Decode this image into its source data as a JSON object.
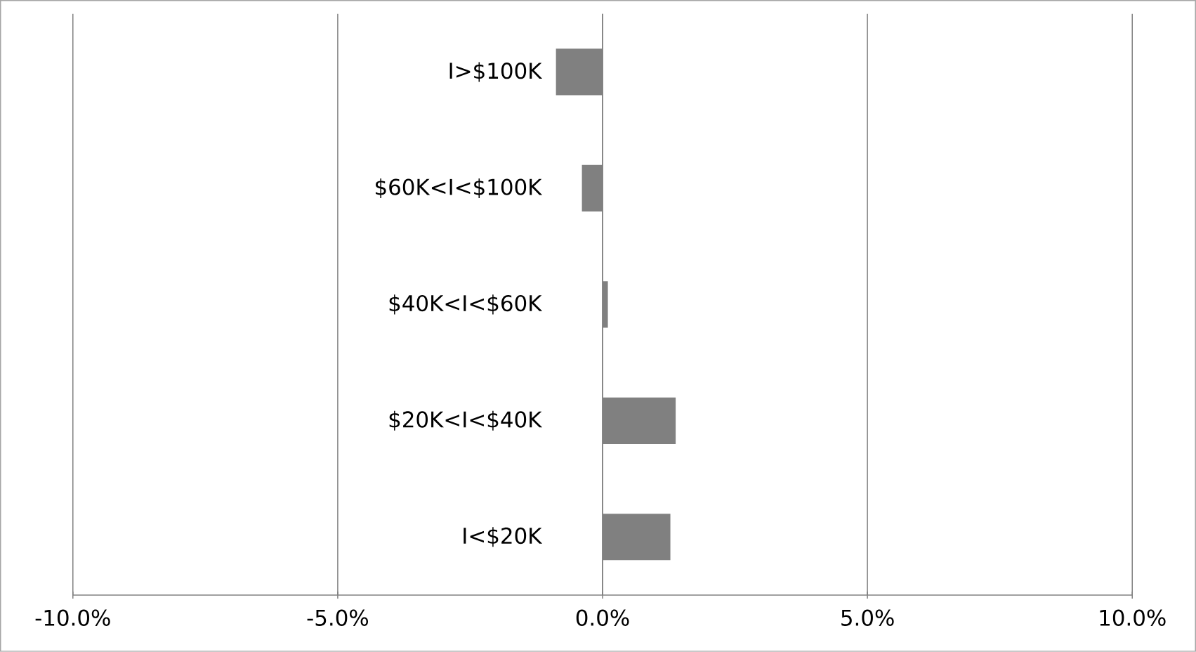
{
  "chart_data": {
    "type": "bar",
    "orientation": "horizontal",
    "categories": [
      "I>$100K",
      "$60K<I<$100K",
      "$40K<I<$60K",
      "$20K<I<$40K",
      "I<$20K"
    ],
    "values": [
      -0.88,
      -0.39,
      0.1,
      1.38,
      1.28
    ],
    "color": "#808080",
    "xlim": [
      -10,
      10
    ],
    "xticks": [
      {
        "value": -10,
        "label": "-10.0%"
      },
      {
        "value": -5,
        "label": "-5.0%"
      },
      {
        "value": 0,
        "label": "0.0%"
      },
      {
        "value": 5,
        "label": "5.0%"
      },
      {
        "value": 10,
        "label": "10.0%"
      }
    ],
    "grid": "x"
  }
}
